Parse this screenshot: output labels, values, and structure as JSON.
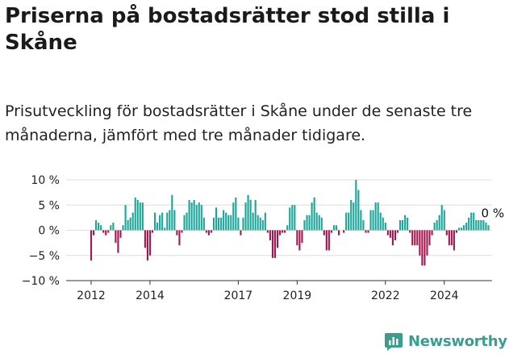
{
  "title": "Priserna på bostadsrätter stod stilla i Skåne",
  "subtitle": "Prisutveckling för bostadsrätter i Skåne under de senaste tre månaderna, jämfört med tre månader tidigare.",
  "brand": {
    "name": "Newsworthy",
    "color": "#3a9e8f"
  },
  "colors": {
    "positive": "#1aa598",
    "negative": "#a31650",
    "grid": "#dddddd",
    "axis": "#333333"
  },
  "chart_data": {
    "type": "bar",
    "ylim": [
      -10,
      10
    ],
    "yticks": [
      10,
      5,
      0,
      -5,
      -10
    ],
    "ytick_labels": [
      "10 %",
      "5 %",
      "0 %",
      "−5 %",
      "−10 %"
    ],
    "xticks": [
      {
        "label": "2012",
        "index": 0
      },
      {
        "label": "2014",
        "index": 24
      },
      {
        "label": "2017",
        "index": 60
      },
      {
        "label": "2019",
        "index": 84
      },
      {
        "label": "2022",
        "index": 120
      },
      {
        "label": "2024",
        "index": 144
      }
    ],
    "last_label": "0 %",
    "values": [
      -6,
      -1,
      2,
      1.5,
      1,
      -0.5,
      -1,
      -0.5,
      1,
      1.5,
      -2.5,
      -4.5,
      -1.5,
      1,
      5,
      2,
      2.5,
      3.5,
      6.5,
      6,
      5.5,
      5.5,
      -3.5,
      -6,
      -5,
      -0.5,
      3.5,
      1.5,
      3,
      3.5,
      0.5,
      3.5,
      4,
      7,
      4,
      -1,
      -3,
      -0.5,
      3,
      3.5,
      6,
      5.5,
      6,
      5,
      5.5,
      5,
      2.5,
      -0.5,
      -1,
      -0.5,
      2.5,
      4.5,
      2.5,
      2.5,
      4,
      3.5,
      3,
      3,
      5.5,
      6.5,
      2.5,
      -1,
      2.5,
      5.5,
      7,
      6,
      3.5,
      6,
      3,
      2.5,
      2,
      3.5,
      -0.5,
      -2,
      -5.5,
      -5.5,
      -3.5,
      -1,
      -0.5,
      -0.5,
      1,
      4.5,
      5,
      5,
      -3,
      -4,
      -2.5,
      2,
      3,
      3,
      5.5,
      6.5,
      3.5,
      3,
      2.5,
      -1,
      -4,
      -4,
      -0.5,
      1,
      1,
      -1,
      0,
      -0.5,
      3.5,
      3.5,
      6,
      5.5,
      10,
      8,
      4,
      2,
      -0.5,
      -0.5,
      4,
      4,
      5.5,
      5.5,
      3.5,
      2.5,
      1.5,
      -1,
      -1.5,
      -3,
      -2,
      -0.5,
      2,
      2,
      3,
      2.5,
      -0.5,
      -3,
      -3,
      -3,
      -5,
      -7,
      -7,
      -5,
      -3,
      -1,
      1.5,
      2,
      3,
      5,
      4,
      -1,
      -3,
      -3,
      -4,
      -0.5,
      0.5,
      0.5,
      1,
      1.5,
      2.5,
      3.5,
      3.5,
      2,
      2,
      2,
      2,
      1.5,
      1,
      0
    ]
  }
}
